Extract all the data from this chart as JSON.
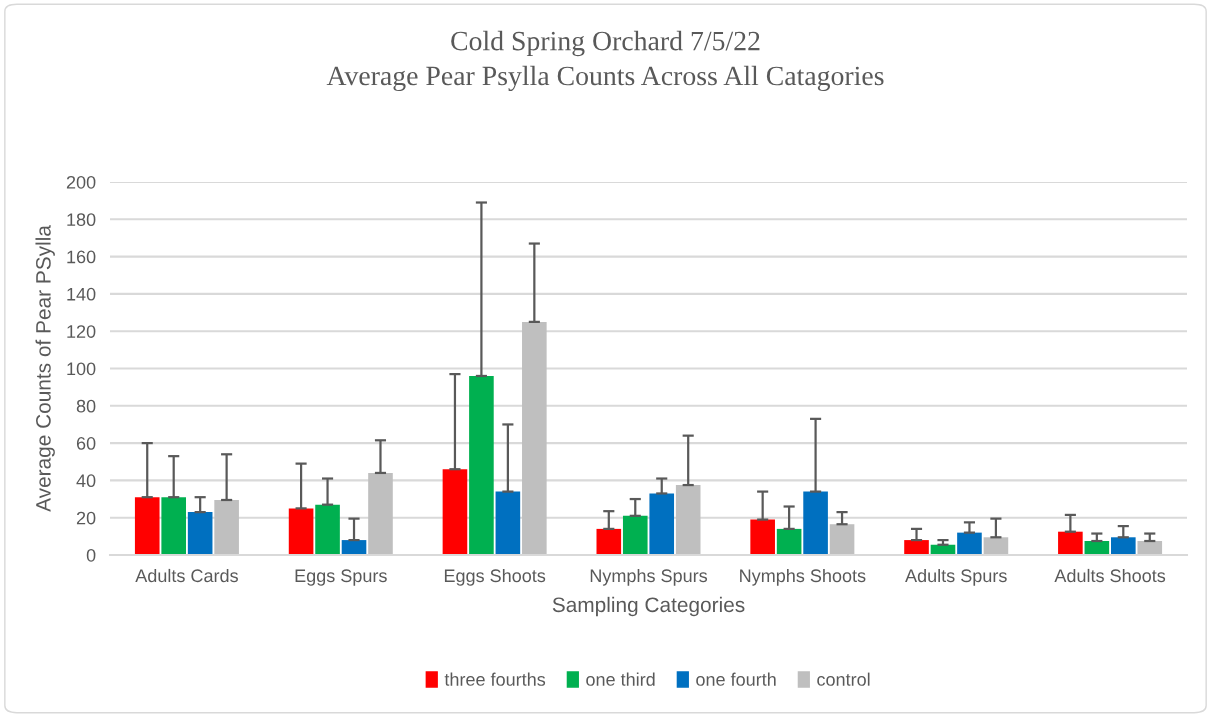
{
  "chart_data": {
    "type": "bar",
    "title": "Cold Spring Orchard 7/5/22\nAverage Pear Psylla Counts Across All Catagories",
    "xlabel": "Sampling Categories",
    "ylabel": "Average Counts of Pear PSylla",
    "categories": [
      "Adults Cards",
      "Eggs Spurs",
      "Eggs Shoots",
      "Nymphs Spurs",
      "Nymphs Shoots",
      "Adults Spurs",
      "Adults Shoots"
    ],
    "series": [
      {
        "name": "three fourths",
        "color": "#ff0000",
        "values": [
          31,
          25,
          46,
          14,
          19,
          8,
          12.5
        ],
        "errors": [
          [
            31,
            60
          ],
          [
            25,
            49
          ],
          [
            46,
            97
          ],
          [
            14,
            23.5
          ],
          [
            19,
            34
          ],
          [
            8,
            14
          ],
          [
            12.5,
            21.5
          ]
        ]
      },
      {
        "name": "one third",
        "color": "#00b050",
        "values": [
          31,
          27,
          96,
          21,
          14,
          5.5,
          7.5
        ],
        "errors": [
          [
            31,
            53
          ],
          [
            27,
            41
          ],
          [
            96,
            189
          ],
          [
            21,
            30
          ],
          [
            14,
            26
          ],
          [
            5.5,
            8
          ],
          [
            7.5,
            11.5
          ]
        ]
      },
      {
        "name": "one fourth",
        "color": "#0070c0",
        "values": [
          23,
          8,
          34,
          33,
          34,
          12,
          9.5
        ],
        "errors": [
          [
            23,
            31
          ],
          [
            8,
            19.5
          ],
          [
            34,
            70
          ],
          [
            33,
            41
          ],
          [
            34,
            73
          ],
          [
            12,
            17.5
          ],
          [
            9.5,
            15.5
          ]
        ]
      },
      {
        "name": "control",
        "color": "#bfbfbf",
        "values": [
          29.5,
          44,
          125,
          37.5,
          16.5,
          9.5,
          7.5
        ],
        "errors": [
          [
            29.5,
            54
          ],
          [
            44,
            61.5
          ],
          [
            125,
            167
          ],
          [
            37.5,
            64
          ],
          [
            16.5,
            23
          ],
          [
            9.5,
            19.5
          ],
          [
            7.5,
            11.5
          ]
        ]
      }
    ],
    "ylim": [
      0,
      200
    ],
    "yticks": [
      0,
      20,
      40,
      60,
      80,
      100,
      120,
      140,
      160,
      180,
      200
    ],
    "grid": "y",
    "legend": "bottom"
  }
}
